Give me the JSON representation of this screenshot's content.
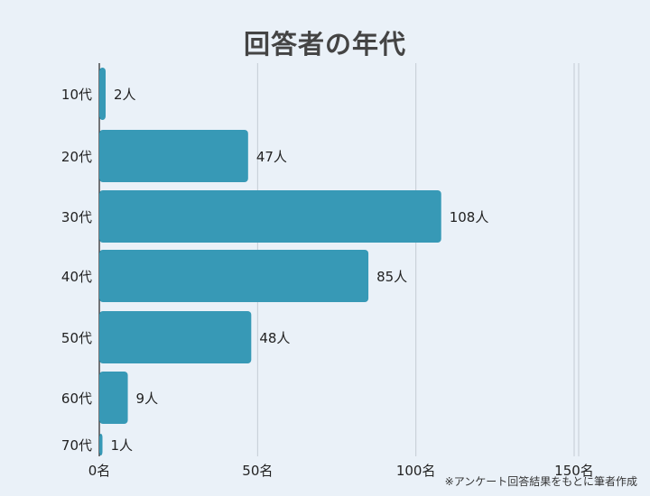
{
  "title": "回答者の年代",
  "note": "※アンケート回答結果をもとに筆者作成",
  "chart_data": {
    "type": "bar",
    "orientation": "horizontal",
    "title": "回答者の年代",
    "categories": [
      "10代",
      "20代",
      "30代",
      "40代",
      "50代",
      "60代",
      "70代"
    ],
    "values": [
      2,
      47,
      108,
      85,
      48,
      9,
      1
    ],
    "value_labels": [
      "2人",
      "47人",
      "108人",
      "85人",
      "48人",
      "9人",
      "1人"
    ],
    "xticks": [
      0,
      50,
      100,
      150
    ],
    "xtick_labels": [
      "0名",
      "50名",
      "100名",
      "150名"
    ],
    "xlim": [
      0,
      150
    ],
    "grid": true,
    "colors": {
      "bar": "#3799b6",
      "grid": "#c4ccd4",
      "axis": "#222222"
    }
  }
}
